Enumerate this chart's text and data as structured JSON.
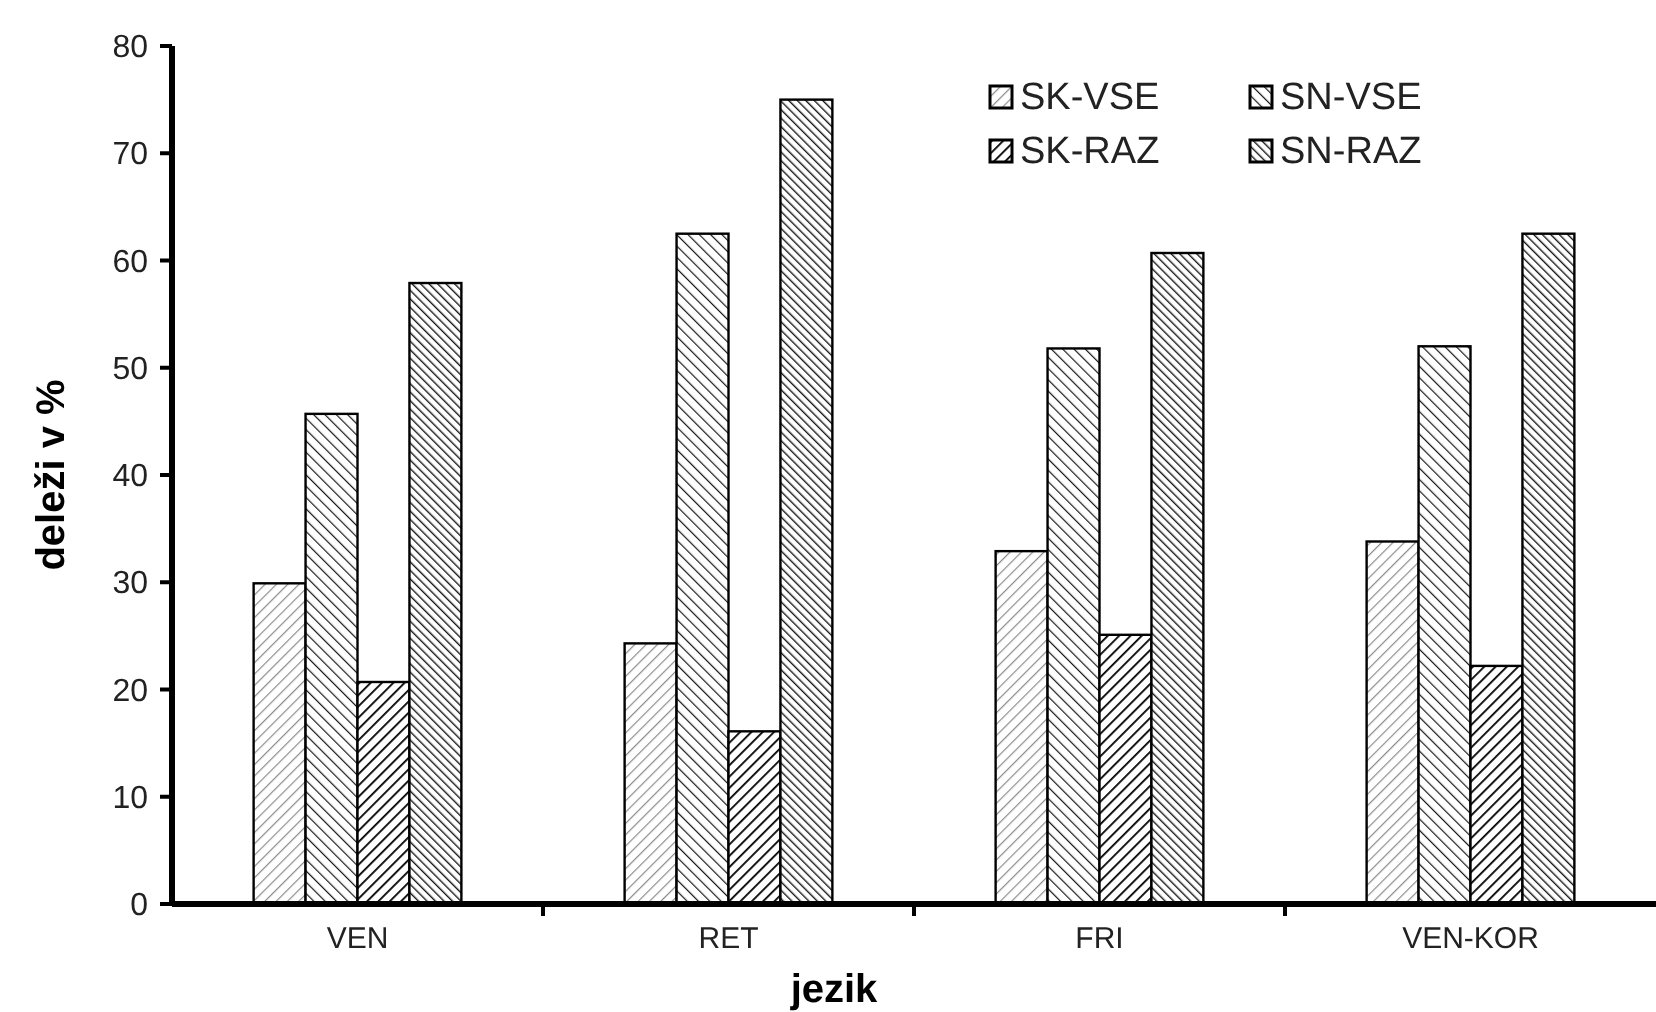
{
  "chart_data": {
    "type": "bar",
    "xlabel": "jezik",
    "ylabel": "deleži v %",
    "categories": [
      "VEN",
      "RET",
      "FRI",
      "VEN-KOR"
    ],
    "series": [
      {
        "name": "SK-VSE",
        "color": "#000000",
        "values": [
          29.9,
          24.3,
          32.9,
          33.8
        ]
      },
      {
        "name": "SN-VSE",
        "color": "#000000",
        "values": [
          45.7,
          62.5,
          51.8,
          52.0
        ]
      },
      {
        "name": "SK-RAZ",
        "color": "#000000",
        "values": [
          20.7,
          16.1,
          25.1,
          22.2
        ]
      },
      {
        "name": "SN-RAZ",
        "color": "#000000",
        "values": [
          57.9,
          75.0,
          60.7,
          62.5
        ]
      }
    ],
    "ylim": [
      0,
      80
    ],
    "yticks": [
      0,
      10,
      20,
      30,
      40,
      50,
      60,
      70,
      80
    ],
    "grid": false,
    "legend": "top right"
  }
}
